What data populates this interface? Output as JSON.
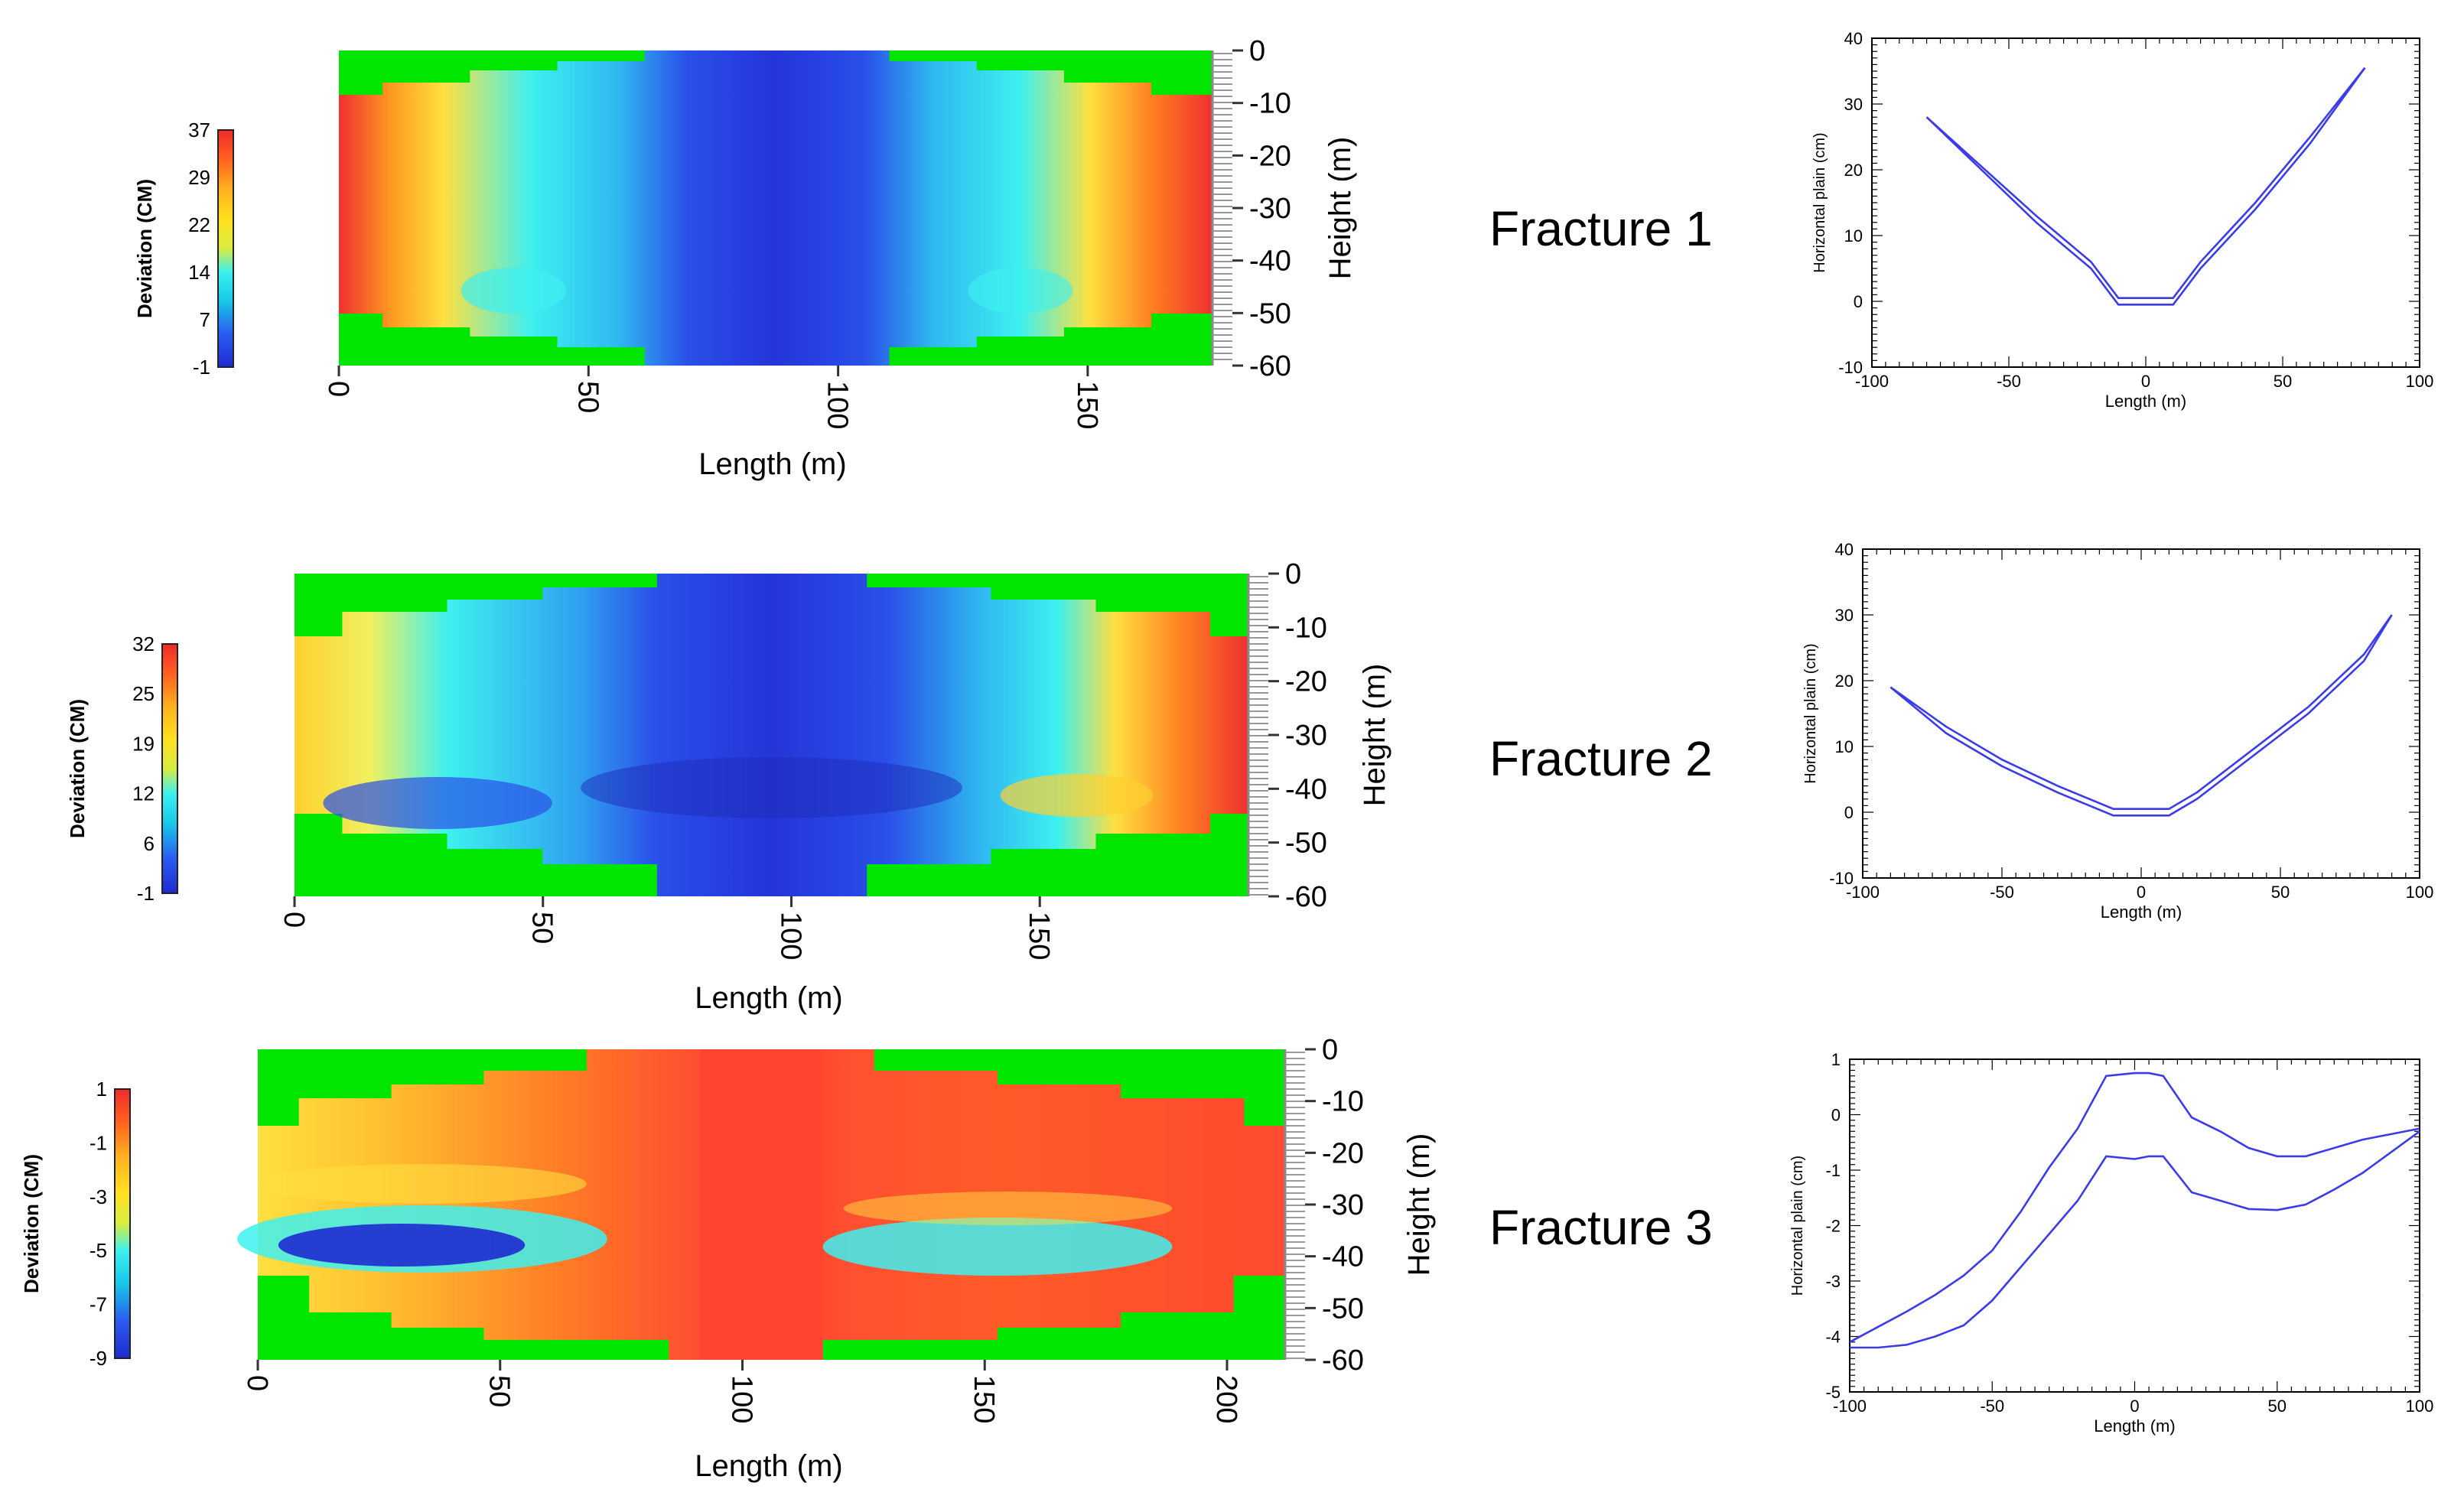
{
  "colors": {
    "map_bg": "#00e600",
    "map_deep": "#2a3fd8",
    "colormap": [
      "#1e2bd0",
      "#2a5cf0",
      "#18c8e8",
      "#3ef0f0",
      "#d8ec40",
      "#ffe020",
      "#ffb020",
      "#ff6020",
      "#ee2a2a"
    ],
    "line_color": "#3b3be8",
    "axis_color": "#000000"
  },
  "fractures": [
    {
      "label": "Fracture 1",
      "contour": {
        "colorbar_title": "Deviation (CM)",
        "colorbar_ticks": [
          "37",
          "29",
          "22",
          "14",
          "7",
          "-1"
        ],
        "x_label": "Length (m)",
        "x_ticks": [
          "0",
          "50",
          "100",
          "150"
        ],
        "y_label": "Height (m)",
        "y_ticks": [
          "0",
          "-10",
          "-20",
          "-30",
          "-40",
          "-50",
          "-60"
        ],
        "pattern": "edges-high"
      },
      "line": {
        "x_label": "Length (m)",
        "y_label": "Horizontal plain (cm)",
        "x_ticks": [
          "-100",
          "-50",
          "0",
          "50",
          "100"
        ],
        "y_ticks": [
          "40",
          "30",
          "20",
          "10",
          "0",
          "-10"
        ]
      }
    },
    {
      "label": "Fracture 2",
      "contour": {
        "colorbar_title": "Deviation (CM)",
        "colorbar_ticks": [
          "32",
          "25",
          "19",
          "12",
          "6",
          "-1"
        ],
        "x_label": "Length (m)",
        "x_ticks": [
          "0",
          "50",
          "100",
          "150"
        ],
        "y_label": "Height (m)",
        "y_ticks": [
          "0",
          "-10",
          "-20",
          "-30",
          "-40",
          "-50",
          "-60"
        ],
        "pattern": "edges-high-right"
      },
      "line": {
        "x_label": "Length (m)",
        "y_label": "Horizontal plain (cm)",
        "x_ticks": [
          "-100",
          "-50",
          "0",
          "50",
          "100"
        ],
        "y_ticks": [
          "40",
          "30",
          "20",
          "10",
          "0",
          "-10"
        ]
      }
    },
    {
      "label": "Fracture 3",
      "contour": {
        "colorbar_title": "Deviation (CM)",
        "colorbar_ticks": [
          "1",
          "-1",
          "-3",
          "-5",
          "-7",
          "-9"
        ],
        "x_label": "Length (m)",
        "x_ticks": [
          "0",
          "50",
          "100",
          "150",
          "200"
        ],
        "y_label": "Height (m)",
        "y_ticks": [
          "0",
          "-10",
          "-20",
          "-30",
          "-40",
          "-50",
          "-60"
        ],
        "pattern": "center-high"
      },
      "line": {
        "x_label": "Length (m)",
        "y_label": "Horizontal plain (cm)",
        "x_ticks": [
          "-100",
          "-50",
          "0",
          "50",
          "100"
        ],
        "y_ticks": [
          "1",
          "0",
          "-1",
          "-2",
          "-3",
          "-4",
          "-5"
        ]
      }
    }
  ],
  "chart_data": [
    {
      "type": "heatmap",
      "xlabel": "Length (m)",
      "ylabel": "Height (m)",
      "colorbar_label": "Deviation (CM)",
      "xlim": [
        0,
        170
      ],
      "ylim": [
        -60,
        0
      ],
      "clim": [
        -1,
        37
      ],
      "description_values": "deviation high (~37) at left and right ends between -10 and -50 m, low (~-1) in central region"
    },
    {
      "type": "line",
      "xlabel": "Length (m)",
      "ylabel": "Horizontal plain (cm)",
      "xlim": [
        -100,
        100
      ],
      "ylim": [
        -10,
        40
      ],
      "series": [
        {
          "x": [
            -80,
            -60,
            -40,
            -20,
            -10,
            10,
            20,
            40,
            60,
            80
          ],
          "y": [
            28,
            20.5,
            13,
            6,
            0.5,
            0.5,
            6,
            15,
            25,
            35.5
          ]
        },
        {
          "x": [
            -80,
            -60,
            -40,
            -20,
            -10,
            10,
            20,
            40,
            60,
            80
          ],
          "y": [
            28,
            20,
            12,
            5,
            -0.5,
            -0.5,
            5,
            14,
            24,
            35.5
          ]
        }
      ]
    },
    {
      "type": "heatmap",
      "xlabel": "Length (m)",
      "ylabel": "Height (m)",
      "colorbar_label": "Deviation (CM)",
      "xlim": [
        0,
        190
      ],
      "ylim": [
        -60,
        0
      ],
      "clim": [
        -1,
        32
      ]
    },
    {
      "type": "line",
      "xlabel": "Length (m)",
      "ylabel": "Horizontal plain (cm)",
      "xlim": [
        -100,
        100
      ],
      "ylim": [
        -10,
        40
      ],
      "series": [
        {
          "x": [
            -90,
            -70,
            -50,
            -30,
            -10,
            10,
            20,
            40,
            60,
            80,
            90
          ],
          "y": [
            19,
            13,
            8,
            4,
            0.5,
            0.5,
            3,
            9.5,
            16,
            24,
            30
          ]
        },
        {
          "x": [
            -90,
            -70,
            -50,
            -30,
            -10,
            10,
            20,
            40,
            60,
            80,
            90
          ],
          "y": [
            19,
            12,
            7,
            3,
            -0.5,
            -0.5,
            2,
            8.5,
            15,
            23,
            30
          ]
        }
      ]
    },
    {
      "type": "heatmap",
      "xlabel": "Length (m)",
      "ylabel": "Height (m)",
      "colorbar_label": "Deviation (CM)",
      "xlim": [
        0,
        210
      ],
      "ylim": [
        -60,
        0
      ],
      "clim": [
        -9,
        1
      ]
    },
    {
      "type": "line",
      "xlabel": "Length (m)",
      "ylabel": "Horizontal plain (cm)",
      "xlim": [
        -100,
        100
      ],
      "ylim": [
        -5,
        1
      ],
      "series": [
        {
          "x": [
            -100,
            -80,
            -70,
            -60,
            -50,
            -40,
            -30,
            -20,
            -10,
            0,
            5,
            10,
            20,
            30,
            40,
            50,
            60,
            70,
            80,
            100
          ],
          "y": [
            -4.1,
            -3.55,
            -3.25,
            -2.9,
            -2.45,
            -1.75,
            -0.95,
            -0.25,
            0.7,
            0.75,
            0.75,
            0.7,
            -0.05,
            -0.3,
            -0.6,
            -0.75,
            -0.75,
            -0.6,
            -0.45,
            -0.25
          ]
        },
        {
          "x": [
            -100,
            -90,
            -80,
            -70,
            -60,
            -50,
            -40,
            -30,
            -20,
            -10,
            0,
            5,
            10,
            20,
            30,
            40,
            50,
            60,
            70,
            80,
            100
          ],
          "y": [
            -4.2,
            -4.2,
            -4.15,
            -4.0,
            -3.8,
            -3.35,
            -2.75,
            -2.15,
            -1.55,
            -0.75,
            -0.8,
            -0.75,
            -0.75,
            -1.4,
            -1.55,
            -1.7,
            -1.72,
            -1.62,
            -1.35,
            -1.05,
            -0.3
          ]
        }
      ]
    }
  ]
}
